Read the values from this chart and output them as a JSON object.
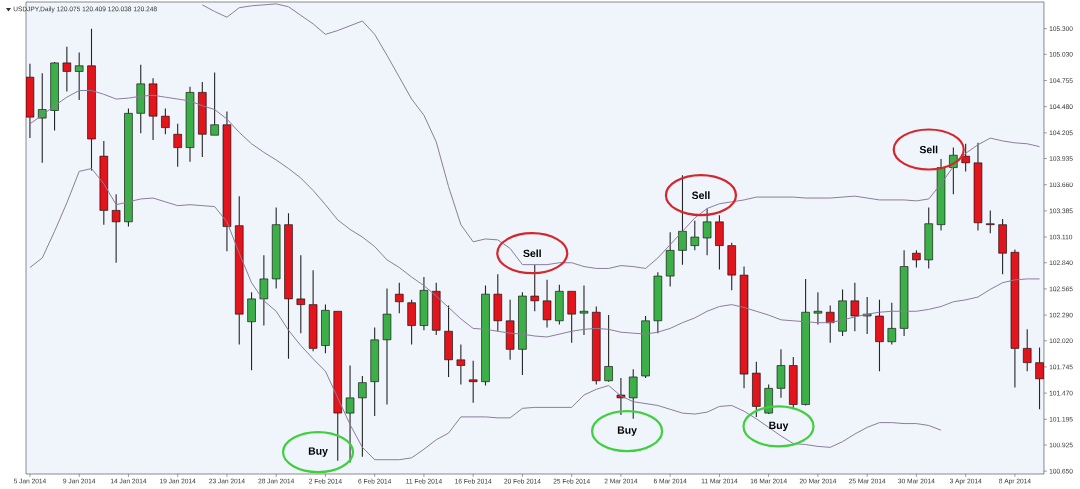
{
  "chart_data": {
    "type": "candlestick",
    "title": "USDJPY,Daily 120.075 120.409 120.038 120.248",
    "categories": [
      "5 Jan 2014",
      null,
      null,
      null,
      "9 Jan 2014",
      null,
      null,
      null,
      "14 Jan 2014",
      null,
      null,
      null,
      "19 Jan 2014",
      null,
      null,
      null,
      "23 Jan 2014",
      null,
      null,
      null,
      "28 Jan 2014",
      null,
      null,
      null,
      "2 Feb 2014",
      null,
      null,
      null,
      "6 Feb 2014",
      null,
      null,
      null,
      "11 Feb 2014",
      null,
      null,
      null,
      "16 Feb 2014",
      null,
      null,
      null,
      "20 Feb 2014",
      null,
      null,
      null,
      "25 Feb 2014",
      null,
      null,
      null,
      "2 Mar 2014",
      null,
      null,
      null,
      "6 Mar 2014",
      null,
      null,
      null,
      "11 Mar 2014",
      null,
      null,
      null,
      "16 Mar 2014",
      null,
      null,
      null,
      "20 Mar 2014",
      null,
      null,
      null,
      "25 Mar 2014",
      null,
      null,
      null,
      "30 Mar 2014",
      null,
      null,
      null,
      "3 Apr 2014",
      null,
      null,
      null,
      "8 Apr 2014",
      null,
      null
    ],
    "ohlc": [
      [
        104.79,
        104.93,
        104.15,
        104.37
      ],
      [
        104.36,
        104.83,
        103.89,
        104.45
      ],
      [
        104.44,
        104.95,
        104.23,
        104.94
      ],
      [
        104.94,
        105.11,
        104.64,
        104.85
      ],
      [
        104.85,
        105.05,
        104.55,
        104.91
      ],
      [
        104.91,
        105.3,
        103.81,
        104.14
      ],
      [
        103.96,
        104.12,
        103.24,
        103.39
      ],
      [
        103.39,
        103.56,
        102.84,
        103.27
      ],
      [
        103.27,
        104.46,
        103.22,
        104.41
      ],
      [
        104.41,
        104.92,
        104.2,
        104.72
      ],
      [
        104.72,
        104.78,
        104.13,
        104.38
      ],
      [
        104.38,
        104.46,
        104.19,
        104.26
      ],
      [
        104.19,
        104.3,
        103.85,
        104.05
      ],
      [
        104.05,
        104.69,
        103.9,
        104.63
      ],
      [
        104.63,
        104.74,
        103.95,
        104.19
      ],
      [
        104.18,
        104.84,
        104.18,
        104.29
      ],
      [
        104.29,
        104.43,
        102.96,
        103.22
      ],
      [
        103.23,
        103.54,
        101.98,
        102.3
      ],
      [
        102.22,
        102.53,
        101.71,
        102.46
      ],
      [
        102.46,
        102.92,
        102.18,
        102.67
      ],
      [
        102.67,
        103.42,
        102.57,
        103.24
      ],
      [
        103.24,
        103.36,
        101.83,
        102.46
      ],
      [
        102.46,
        102.92,
        102.1,
        102.4
      ],
      [
        102.4,
        102.76,
        101.91,
        101.94
      ],
      [
        101.97,
        102.4,
        101.89,
        102.34
      ],
      [
        102.33,
        102.33,
        100.76,
        101.26
      ],
      [
        101.26,
        101.76,
        100.74,
        101.42
      ],
      [
        101.42,
        101.65,
        100.8,
        101.58
      ],
      [
        101.59,
        102.16,
        101.23,
        102.03
      ],
      [
        102.03,
        102.57,
        101.35,
        102.3
      ],
      [
        102.51,
        102.63,
        102.31,
        102.43
      ],
      [
        102.42,
        102.45,
        101.98,
        102.18
      ],
      [
        102.18,
        102.69,
        102.13,
        102.55
      ],
      [
        102.54,
        102.63,
        102.08,
        102.13
      ],
      [
        102.12,
        102.39,
        101.64,
        101.82
      ],
      [
        101.82,
        101.98,
        101.56,
        101.76
      ],
      [
        101.61,
        101.81,
        101.37,
        101.59
      ],
      [
        101.59,
        102.6,
        101.55,
        102.51
      ],
      [
        102.51,
        102.72,
        102.12,
        102.23
      ],
      [
        102.23,
        102.45,
        101.82,
        101.93
      ],
      [
        101.93,
        102.53,
        101.66,
        102.49
      ],
      [
        102.49,
        102.82,
        102.33,
        102.44
      ],
      [
        102.44,
        102.66,
        102.16,
        102.24
      ],
      [
        102.23,
        102.61,
        102.19,
        102.54
      ],
      [
        102.54,
        102.54,
        102.0,
        102.3
      ],
      [
        102.31,
        102.6,
        102.08,
        102.33
      ],
      [
        102.32,
        102.38,
        101.56,
        101.6
      ],
      [
        101.6,
        102.29,
        101.59,
        101.75
      ],
      [
        101.45,
        101.63,
        101.24,
        101.42
      ],
      [
        101.42,
        101.72,
        101.2,
        101.64
      ],
      [
        101.65,
        102.28,
        101.63,
        102.23
      ],
      [
        102.23,
        102.74,
        102.1,
        102.7
      ],
      [
        102.7,
        103.16,
        102.59,
        102.97
      ],
      [
        102.97,
        103.76,
        102.82,
        103.17
      ],
      [
        103.02,
        103.28,
        102.97,
        103.11
      ],
      [
        103.1,
        103.41,
        102.92,
        103.27
      ],
      [
        103.27,
        103.34,
        102.77,
        103.02
      ],
      [
        103.02,
        103.05,
        102.55,
        102.71
      ],
      [
        102.71,
        102.8,
        101.52,
        101.67
      ],
      [
        101.68,
        101.8,
        101.22,
        101.33
      ],
      [
        101.26,
        101.56,
        101.25,
        101.52
      ],
      [
        101.52,
        101.93,
        101.42,
        101.76
      ],
      [
        101.76,
        101.85,
        101.3,
        101.35
      ],
      [
        101.35,
        102.67,
        101.34,
        102.32
      ],
      [
        102.31,
        102.53,
        102.19,
        102.33
      ],
      [
        102.32,
        102.39,
        102.0,
        102.21
      ],
      [
        102.12,
        102.56,
        102.07,
        102.44
      ],
      [
        102.44,
        102.63,
        102.12,
        102.28
      ],
      [
        102.28,
        102.48,
        102.09,
        102.3
      ],
      [
        102.28,
        102.45,
        101.7,
        102.01
      ],
      [
        102.01,
        102.42,
        101.98,
        102.15
      ],
      [
        102.15,
        102.97,
        102.07,
        102.8
      ],
      [
        102.94,
        102.97,
        102.79,
        102.87
      ],
      [
        102.87,
        103.42,
        102.78,
        103.25
      ],
      [
        103.24,
        103.93,
        103.18,
        103.84
      ],
      [
        103.84,
        104.05,
        103.56,
        103.97
      ],
      [
        103.96,
        104.09,
        103.8,
        103.89
      ],
      [
        103.89,
        104.1,
        103.18,
        103.26
      ],
      [
        103.25,
        103.39,
        103.15,
        103.24
      ],
      [
        103.24,
        103.3,
        102.72,
        102.94
      ],
      [
        102.95,
        102.98,
        101.53,
        101.94
      ],
      [
        101.94,
        102.14,
        101.7,
        101.79
      ],
      [
        101.79,
        101.95,
        101.3,
        101.62
      ]
    ],
    "colors": [
      "#e2141c",
      "#3daf49",
      "#3daf49",
      "#e2141c",
      "#3daf49",
      "#e2141c",
      "#e2141c",
      "#e2141c",
      "#3daf49",
      "#3daf49",
      "#e2141c",
      "#e2141c",
      "#e2141c",
      "#3daf49",
      "#e2141c",
      "#3daf49",
      "#e2141c",
      "#e2141c",
      "#3daf49",
      "#3daf49",
      "#3daf49",
      "#e2141c",
      "#e2141c",
      "#e2141c",
      "#3daf49",
      "#e2141c",
      "#3daf49",
      "#3daf49",
      "#3daf49",
      "#3daf49",
      "#e2141c",
      "#e2141c",
      "#3daf49",
      "#e2141c",
      "#e2141c",
      "#e2141c",
      "#e2141c",
      "#3daf49",
      "#e2141c",
      "#e2141c",
      "#3daf49",
      "#e2141c",
      "#e2141c",
      "#3daf49",
      "#e2141c",
      "#3daf49",
      "#e2141c",
      "#3daf49",
      "#e2141c",
      "#3daf49",
      "#3daf49",
      "#3daf49",
      "#3daf49",
      "#3daf49",
      "#3daf49",
      "#3daf49",
      "#e2141c",
      "#e2141c",
      "#e2141c",
      "#e2141c",
      "#3daf49",
      "#3daf49",
      "#e2141c",
      "#3daf49",
      "#3daf49",
      "#e2141c",
      "#3daf49",
      "#e2141c",
      "#3daf49",
      "#e2141c",
      "#3daf49",
      "#3daf49",
      "#e2141c",
      "#3daf49",
      "#3daf49",
      "#3daf49",
      "#e2141c",
      "#e2141c",
      "#e2141c",
      "#e2141c",
      "#e2141c",
      "#e2141c",
      "#e2141c"
    ],
    "series": [
      {
        "type": "line",
        "color": "#8c7b9c",
        "values": [
          null,
          null,
          null,
          null,
          null,
          null,
          null,
          null,
          null,
          null,
          null,
          null,
          null,
          null,
          105.55,
          105.48,
          105.42,
          105.52,
          105.54,
          105.55,
          105.56,
          105.53,
          105.44,
          105.35,
          105.24,
          105.28,
          105.33,
          105.38,
          105.24,
          105.02,
          104.79,
          104.56,
          104.39,
          104.11,
          103.64,
          103.24,
          103.06,
          103.09,
          103.08,
          102.99,
          102.82,
          102.82,
          102.82,
          102.84,
          102.84,
          102.8,
          102.78,
          102.78,
          102.81,
          102.8,
          102.78,
          102.89,
          103.03,
          103.17,
          103.31,
          103.41,
          103.46,
          103.48,
          103.5,
          103.53,
          103.53,
          103.53,
          103.53,
          103.52,
          103.52,
          103.52,
          103.53,
          103.54,
          103.52,
          103.5,
          103.5,
          103.5,
          103.49,
          103.51,
          103.67,
          103.85,
          103.99,
          104.08,
          104.15,
          104.12,
          104.1,
          104.09,
          104.06
        ]
      },
      {
        "type": "line",
        "color": "#8c7b9c",
        "values": [
          104.3,
          104.39,
          104.49,
          104.58,
          104.65,
          104.65,
          104.61,
          104.56,
          104.57,
          104.59,
          104.6,
          104.58,
          104.56,
          104.54,
          104.49,
          104.45,
          104.35,
          104.21,
          104.09,
          104.0,
          103.92,
          103.83,
          103.73,
          103.6,
          103.45,
          103.29,
          103.19,
          103.11,
          103.01,
          102.87,
          102.79,
          102.69,
          102.6,
          102.49,
          102.37,
          102.25,
          102.15,
          102.14,
          102.12,
          102.1,
          102.09,
          102.07,
          102.06,
          102.09,
          102.12,
          102.14,
          102.15,
          102.14,
          102.11,
          102.1,
          102.09,
          102.11,
          102.15,
          102.21,
          102.26,
          102.33,
          102.38,
          102.4,
          102.37,
          102.33,
          102.29,
          102.24,
          102.23,
          102.22,
          102.21,
          102.21,
          102.24,
          102.27,
          102.3,
          102.32,
          102.33,
          102.33,
          102.33,
          102.35,
          102.38,
          102.43,
          102.45,
          102.48,
          102.56,
          102.63,
          102.66,
          102.67,
          102.67
        ]
      },
      {
        "type": "line",
        "color": "#8c7b9c",
        "values": [
          102.79,
          102.89,
          103.17,
          103.47,
          103.8,
          103.83,
          103.67,
          103.45,
          103.48,
          103.51,
          103.52,
          103.48,
          103.44,
          103.45,
          103.44,
          103.43,
          103.27,
          102.94,
          102.63,
          102.44,
          102.33,
          102.13,
          101.97,
          101.83,
          101.7,
          101.42,
          101.14,
          100.9,
          100.77,
          100.77,
          100.77,
          100.79,
          100.88,
          100.98,
          101.05,
          101.22,
          101.22,
          101.22,
          101.21,
          101.21,
          101.31,
          101.32,
          101.32,
          101.32,
          101.32,
          101.45,
          101.51,
          101.55,
          101.44,
          101.38,
          101.36,
          101.34,
          101.3,
          101.26,
          101.25,
          101.27,
          101.33,
          101.34,
          101.28,
          101.2,
          101.11,
          101.02,
          100.94,
          100.93,
          100.91,
          100.9,
          100.96,
          101.04,
          101.11,
          101.16,
          101.16,
          101.15,
          101.15,
          101.13,
          101.08,
          null,
          null,
          null,
          null,
          null,
          null,
          null,
          null
        ]
      }
    ],
    "ylim": [
      100.62,
      105.58
    ],
    "yticks": [
      {
        "value": 105.3,
        "label": "105.300"
      },
      {
        "value": 105.03,
        "label": "105.030"
      },
      {
        "value": 104.755,
        "label": "104.755"
      },
      {
        "value": 104.48,
        "label": "104.480"
      },
      {
        "value": 104.205,
        "label": "104.205"
      },
      {
        "value": 103.935,
        "label": "103.935"
      },
      {
        "value": 103.66,
        "label": "103.660"
      },
      {
        "value": 103.385,
        "label": "103.385"
      },
      {
        "value": 103.11,
        "label": "103.110"
      },
      {
        "value": 102.84,
        "label": "102.840"
      },
      {
        "value": 102.565,
        "label": "102.565"
      },
      {
        "value": 102.29,
        "label": "102.290"
      },
      {
        "value": 102.02,
        "label": "102.020"
      },
      {
        "value": 101.745,
        "label": "101.745"
      },
      {
        "value": 101.47,
        "label": "101.470"
      },
      {
        "value": 101.195,
        "label": "101.195"
      },
      {
        "value": 100.925,
        "label": "100.925"
      },
      {
        "value": 100.65,
        "label": "100.650"
      }
    ],
    "annotations": [
      "Buy",
      "Sell",
      "Buy",
      "Sell",
      "Buy",
      "Sell"
    ]
  }
}
